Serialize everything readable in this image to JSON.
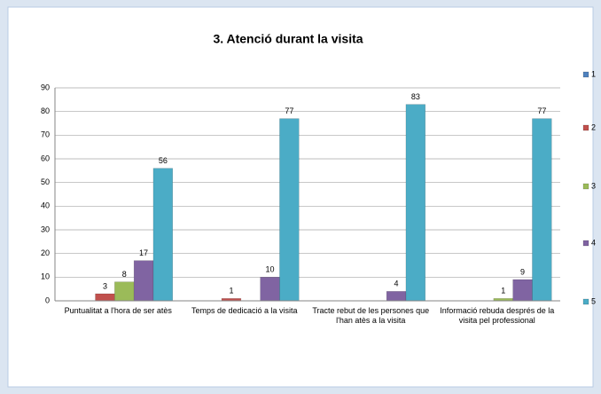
{
  "chart_data": {
    "type": "bar",
    "title": "3. Atenció durant la visita",
    "categories": [
      "Puntualitat a  l'hora de ser atès",
      "Temps de dedicació a la visita",
      "Tracte rebut de les persones que l'han atès a la visita",
      "Informació rebuda després de la visita  pel professional"
    ],
    "series": [
      {
        "name": "1",
        "color": "#4f81bd",
        "values": [
          null,
          null,
          null,
          null
        ]
      },
      {
        "name": "2",
        "color": "#c0504d",
        "values": [
          3,
          1,
          null,
          null
        ]
      },
      {
        "name": "3",
        "color": "#9bbb59",
        "values": [
          8,
          null,
          null,
          1
        ]
      },
      {
        "name": "4",
        "color": "#8064a2",
        "values": [
          17,
          10,
          4,
          9
        ]
      },
      {
        "name": "5",
        "color": "#4bacc6",
        "values": [
          56,
          77,
          83,
          77
        ]
      }
    ],
    "ylim": [
      0,
      90
    ],
    "yticks": [
      0,
      10,
      20,
      30,
      40,
      50,
      60,
      70,
      80,
      90
    ],
    "grid": true,
    "legend": "right"
  }
}
